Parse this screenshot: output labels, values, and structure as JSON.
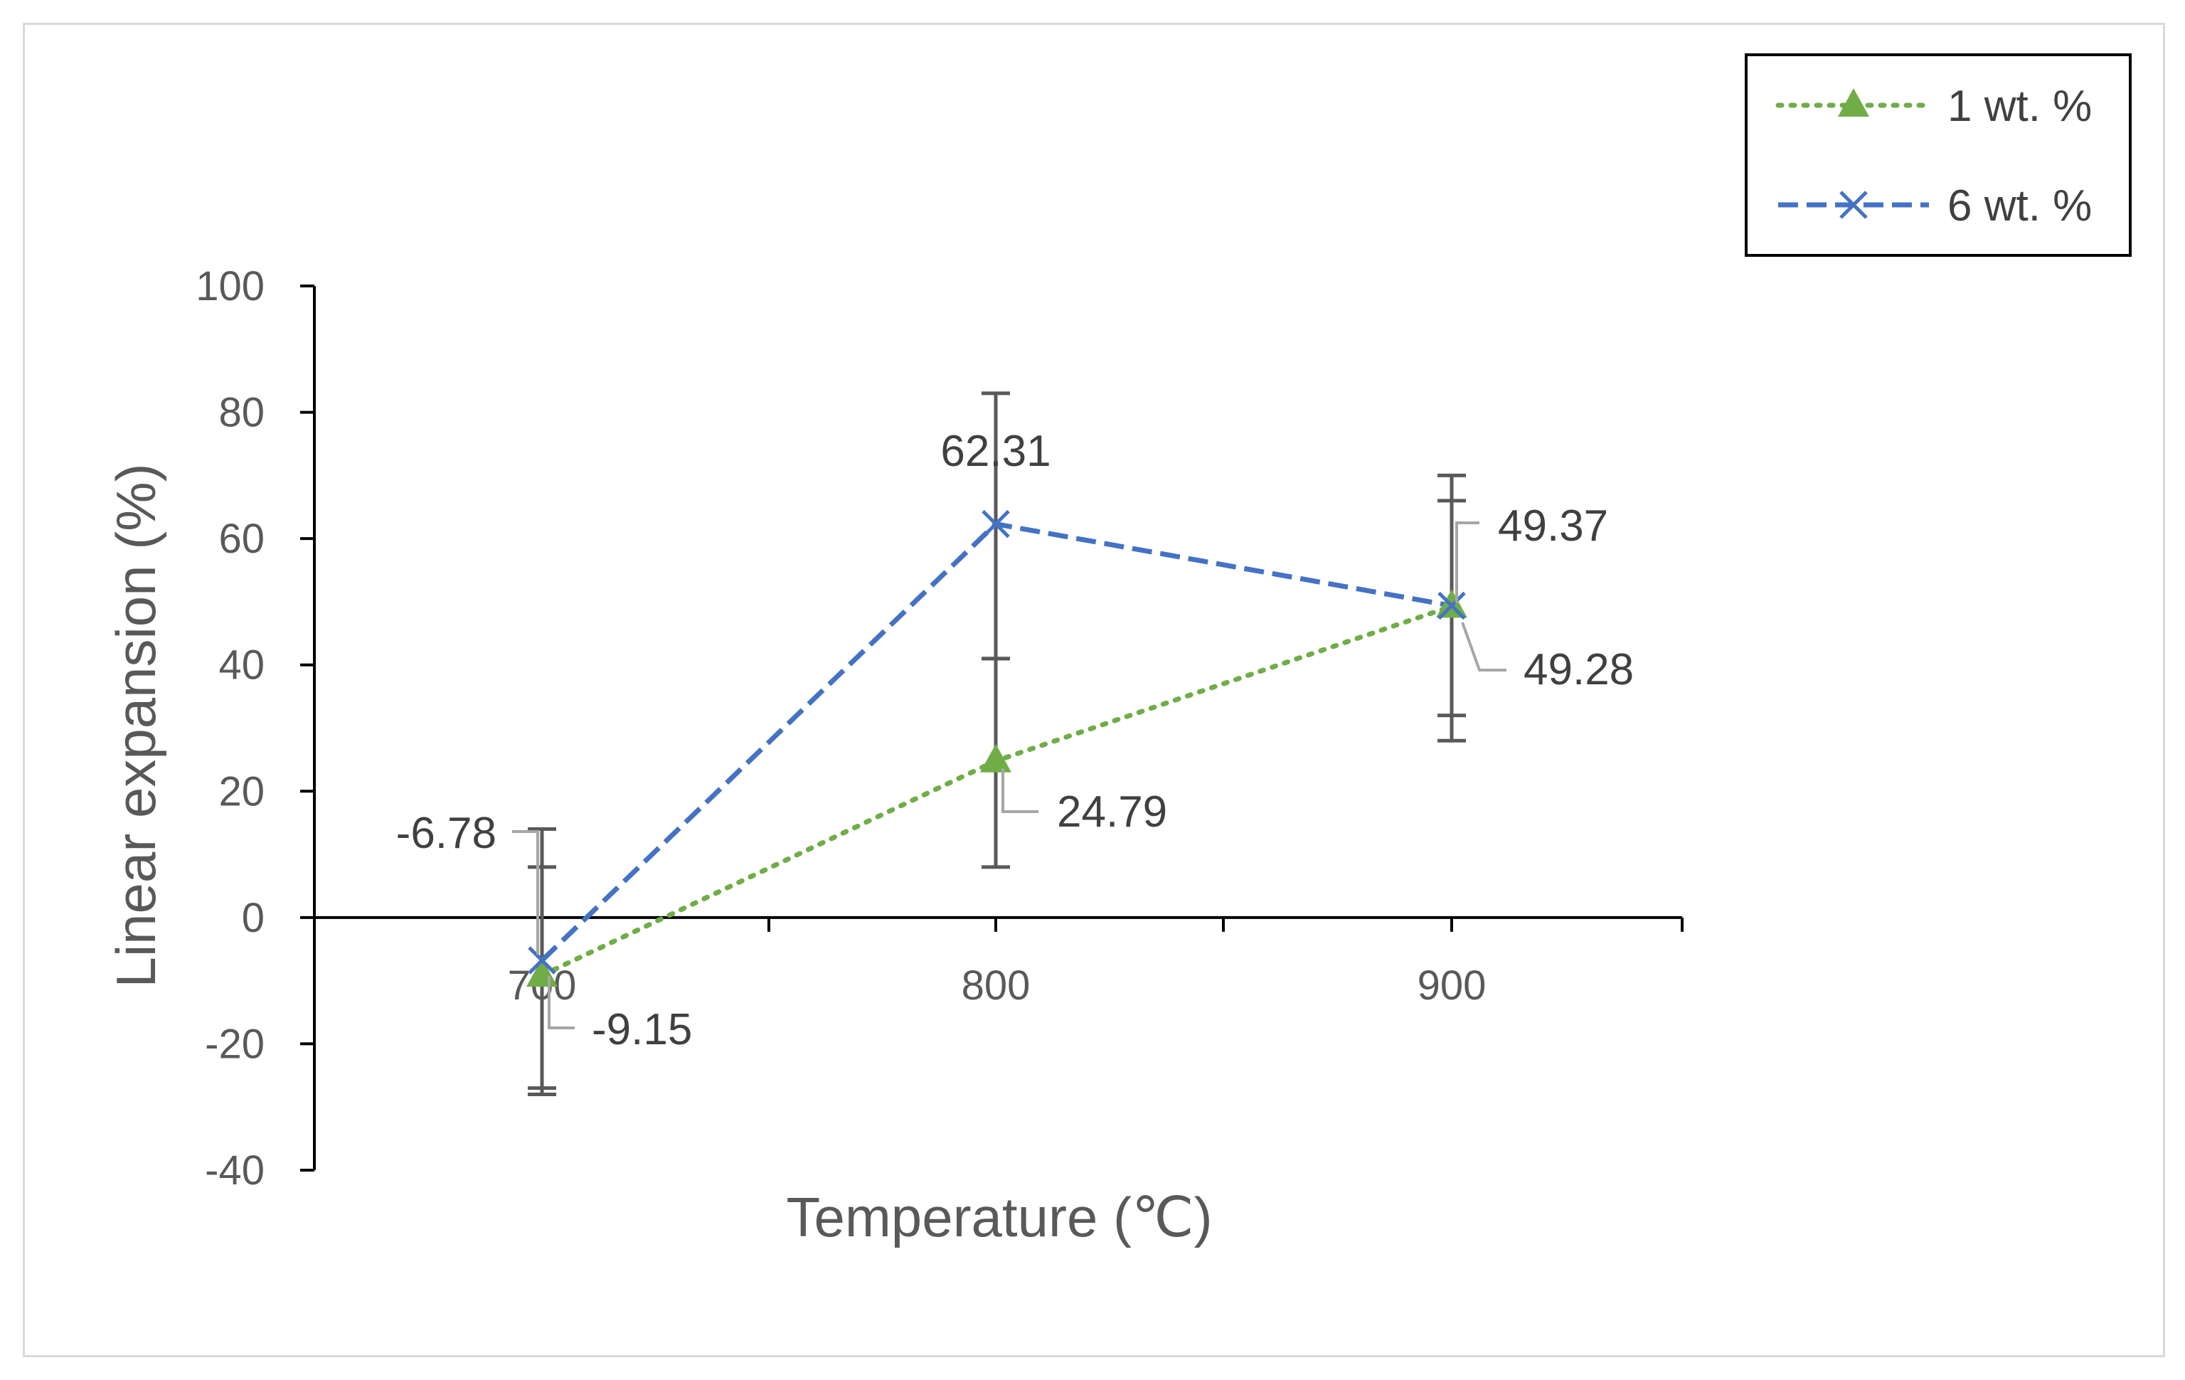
{
  "chart_data": {
    "type": "line",
    "title": "",
    "xlabel": "Temperature (℃)",
    "ylabel": "Linear expansion   (%)",
    "categories": [
      "700",
      "800",
      "900"
    ],
    "ylim": [
      -40,
      100
    ],
    "yticks": [
      -40,
      -20,
      0,
      20,
      40,
      60,
      80,
      100
    ],
    "grid": false,
    "legend_position": "top-right",
    "series": [
      {
        "name": "1 wt. %",
        "color": "#70ad47",
        "line_style": "dotted",
        "marker": "triangle",
        "values": [
          -9.15,
          24.79,
          49.28
        ],
        "error_low": [
          -28,
          8,
          28
        ],
        "error_high": [
          8,
          41,
          70
        ],
        "labels": [
          "-9.15",
          "24.79",
          "49.28"
        ]
      },
      {
        "name": "6 wt. %",
        "color": "#4472c4",
        "line_style": "dashed",
        "marker": "x",
        "values": [
          -6.78,
          62.31,
          49.37
        ],
        "error_low": [
          -27,
          41,
          32
        ],
        "error_high": [
          14,
          83,
          66
        ],
        "labels": [
          "-6.78",
          "62.31",
          "49.37"
        ]
      }
    ]
  }
}
